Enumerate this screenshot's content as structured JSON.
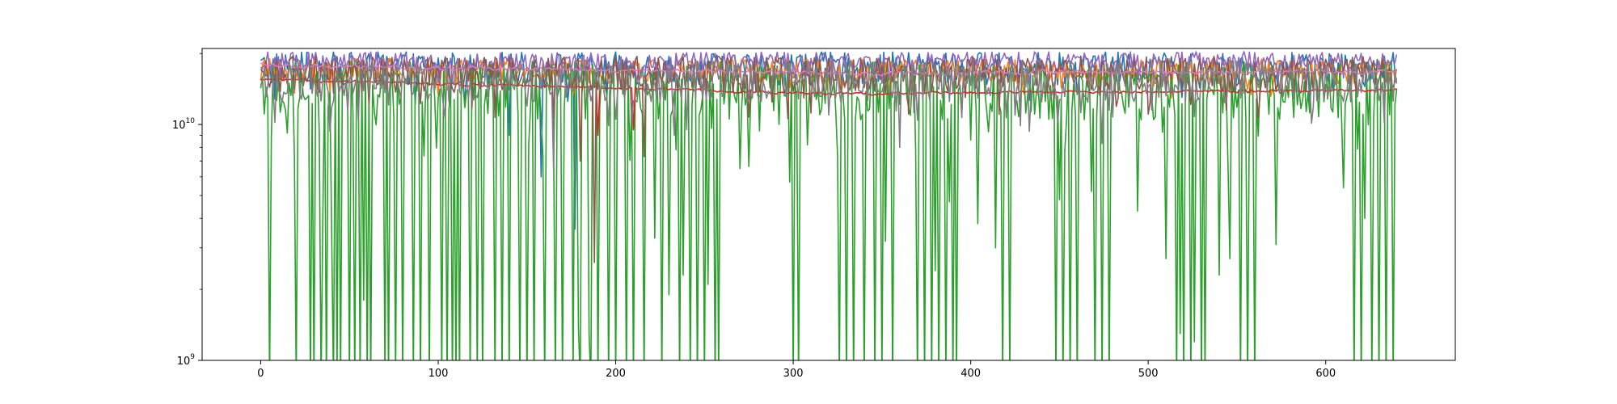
{
  "chart_data": {
    "type": "line",
    "title": "",
    "xlabel": "",
    "ylabel": "",
    "xlim": [
      -33,
      673
    ],
    "ylim": [
      1000000000,
      21000000000
    ],
    "y_scale": "log",
    "grid": false,
    "legend": "none",
    "x_ticks": [
      {
        "value": 0,
        "label": "0"
      },
      {
        "value": 100,
        "label": "100"
      },
      {
        "value": 200,
        "label": "200"
      },
      {
        "value": 300,
        "label": "300"
      },
      {
        "value": 400,
        "label": "400"
      },
      {
        "value": 500,
        "label": "500"
      },
      {
        "value": 600,
        "label": "600"
      }
    ],
    "y_ticks": [
      {
        "value": 1000000000,
        "base": "10",
        "exponent": "9"
      },
      {
        "value": 10000000000,
        "base": "10",
        "exponent": "10"
      }
    ],
    "y_minor_ticks": [
      2000000000,
      3000000000,
      4000000000,
      5000000000,
      6000000000,
      7000000000,
      8000000000,
      9000000000,
      20000000000
    ],
    "x_range": [
      0,
      640
    ],
    "series": [
      {
        "color": "#1f77b4",
        "style": "noisy-high",
        "center": 17500000000,
        "spread": 0.16,
        "spikes": [
          [
            177,
            3600000000
          ],
          [
            158,
            6000000000
          ],
          [
            140,
            9000000000
          ]
        ]
      },
      {
        "color": "#ff7f0e",
        "style": "noisy-high",
        "center": 17000000000,
        "spread": 0.12,
        "spikes": []
      },
      {
        "color": "#2ca02c",
        "style": "dropouts",
        "center": 14500000000,
        "spread": 0.28,
        "dropouts": [
          5,
          20,
          28,
          30,
          34,
          37,
          41,
          43,
          45,
          50,
          53,
          56,
          60,
          62,
          70,
          72,
          76,
          80,
          86,
          90,
          95,
          102,
          105,
          108,
          110,
          112,
          118,
          122,
          125,
          132,
          136,
          140,
          146,
          150,
          154,
          160,
          166,
          170,
          176,
          180,
          186,
          190,
          196,
          200,
          206,
          210,
          216,
          222,
          226,
          230,
          236,
          242,
          246,
          250,
          256,
          258,
          300,
          303,
          326,
          330,
          334,
          340,
          346,
          350,
          356,
          370,
          374,
          378,
          382,
          386,
          390,
          392,
          414,
          418,
          422,
          448,
          452,
          456,
          460,
          470,
          474,
          478,
          516,
          520,
          524,
          530,
          532,
          552,
          556,
          560,
          616,
          620,
          626,
          630,
          634,
          638
        ],
        "partial": [
          [
            6,
            8800000000
          ],
          [
            15,
            9200000000
          ],
          [
            19,
            7300000000
          ],
          [
            35,
            4000000000
          ],
          [
            40,
            3400000000
          ],
          [
            58,
            1800000000
          ],
          [
            179,
            1400000000
          ],
          [
            185,
            1300000000
          ],
          [
            222,
            3300000000
          ],
          [
            230,
            1900000000
          ],
          [
            238,
            2300000000
          ],
          [
            252,
            2100000000
          ],
          [
            298,
            5700000000
          ],
          [
            308,
            8200000000
          ],
          [
            352,
            3200000000
          ],
          [
            380,
            2400000000
          ],
          [
            388,
            4700000000
          ],
          [
            404,
            3800000000
          ],
          [
            414,
            3000000000
          ],
          [
            450,
            4800000000
          ],
          [
            468,
            5200000000
          ],
          [
            494,
            4300000000
          ],
          [
            510,
            2700000000
          ],
          [
            518,
            1300000000
          ],
          [
            526,
            1200000000
          ],
          [
            540,
            2300000000
          ],
          [
            546,
            2700000000
          ],
          [
            572,
            3100000000
          ],
          [
            610,
            5400000000
          ],
          [
            622,
            4000000000
          ]
        ]
      },
      {
        "color": "#d62728",
        "style": "smooth",
        "start": 15500000000,
        "mid": 13500000000,
        "end": 14000000000,
        "spread": 0.025,
        "spikes": [
          [
            190,
            9000000000
          ],
          [
            210,
            9500000000
          ]
        ]
      },
      {
        "color": "#9467bd",
        "style": "noisy-high",
        "center": 18500000000,
        "spread": 0.1,
        "spikes": []
      },
      {
        "color": "#8c564b",
        "style": "noisy-high",
        "center": 16500000000,
        "spread": 0.18,
        "spikes": [
          [
            180,
            7000000000
          ],
          [
            216,
            7300000000
          ],
          [
            188,
            2600000000
          ]
        ]
      },
      {
        "color": "#e377c2",
        "style": "smooth",
        "start": 17800000000,
        "mid": 16500000000,
        "end": 16800000000,
        "spread": 0.04,
        "spikes": []
      },
      {
        "color": "#7f7f7f",
        "style": "noisy-high",
        "center": 15500000000,
        "spread": 0.2,
        "spikes": [
          [
            165,
            6500000000
          ],
          [
            233,
            9000000000
          ],
          [
            360,
            8000000000
          ],
          [
            474,
            8300000000
          ]
        ]
      }
    ]
  }
}
